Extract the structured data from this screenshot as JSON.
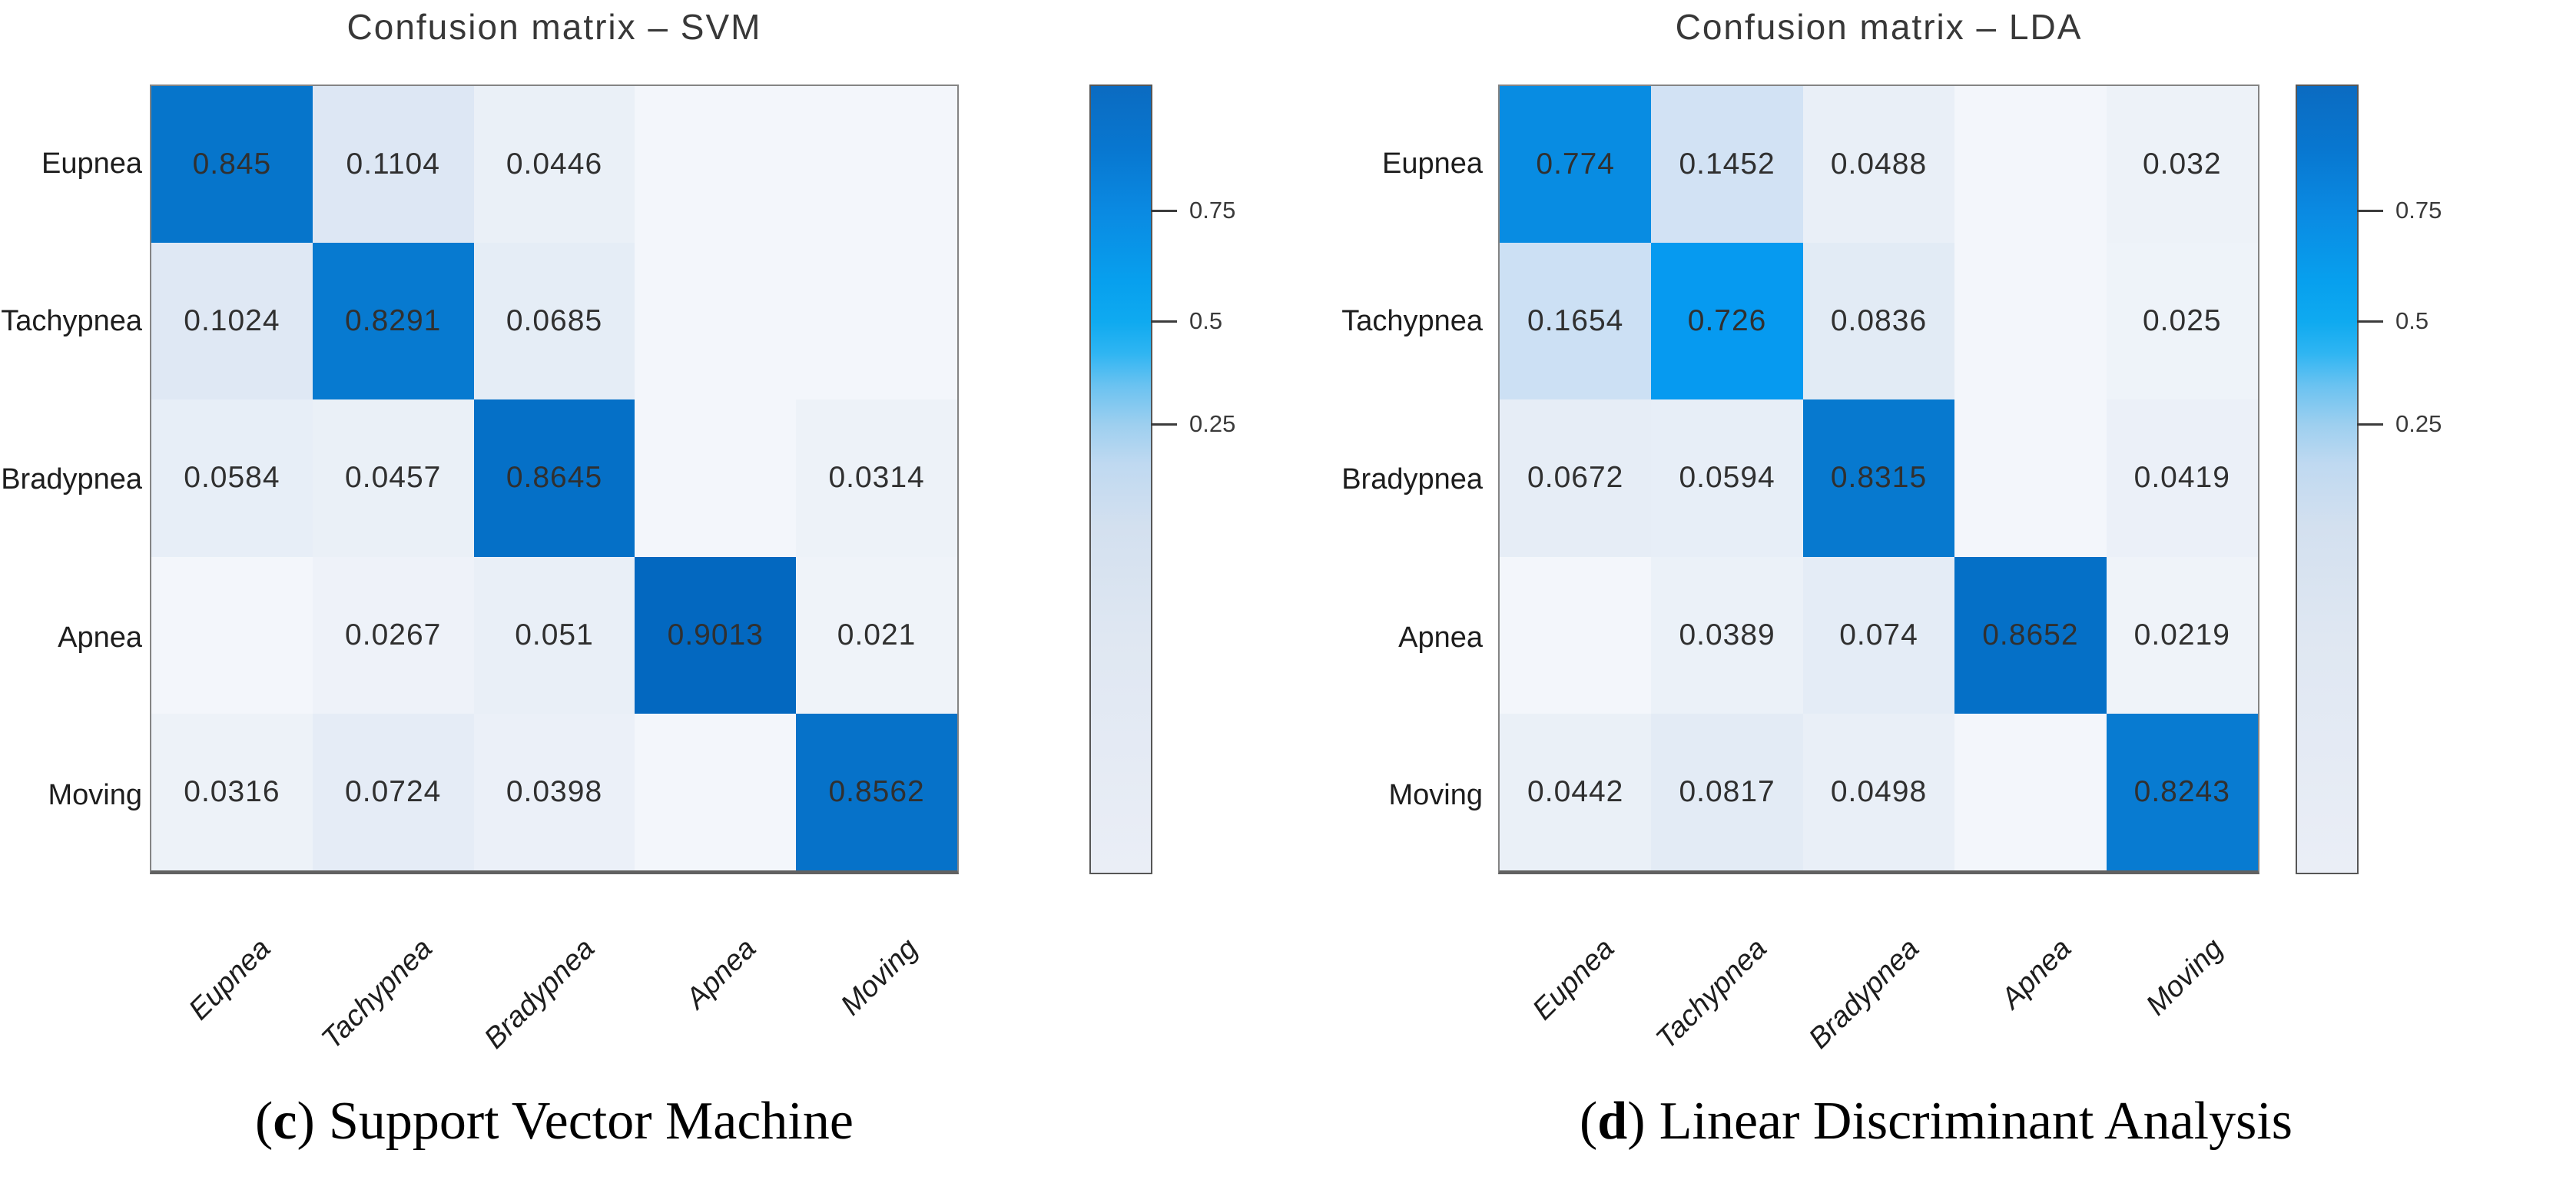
{
  "chart_data": [
    {
      "type": "heatmap",
      "title": "Confusion matrix – SVM",
      "caption": {
        "open": "(",
        "letter": "c",
        "close": ")",
        "text": "Support Vector Machine"
      },
      "x_axis_labels": [
        "Eupnea",
        "Tachypnea",
        "Bradypnea",
        "Apnea",
        "Moving"
      ],
      "y_axis_labels": [
        "Eupnea",
        "Tachypnea",
        "Bradypnea",
        "Apnea",
        "Moving"
      ],
      "values": [
        [
          0.845,
          0.1104,
          0.0446,
          null,
          null
        ],
        [
          0.1024,
          0.8291,
          0.0685,
          null,
          null
        ],
        [
          0.0584,
          0.0457,
          0.8645,
          null,
          0.0314
        ],
        [
          null,
          0.0267,
          0.051,
          0.9013,
          0.021
        ],
        [
          0.0316,
          0.0724,
          0.0398,
          null,
          0.8562
        ]
      ],
      "colorbar": {
        "tick_labels": [
          "0.75",
          "0.5",
          "0.25"
        ],
        "tick_values": [
          0.75,
          0.5,
          0.25
        ]
      },
      "value_range": [
        0,
        0.9013
      ],
      "grid": false,
      "legend_position": "right"
    },
    {
      "type": "heatmap",
      "title": "Confusion matrix – LDA",
      "caption": {
        "open": "(",
        "letter": "d",
        "close": ")",
        "text": "Linear Discriminant Analysis"
      },
      "x_axis_labels": [
        "Eupnea",
        "Tachypnea",
        "Bradypnea",
        "Apnea",
        "Moving"
      ],
      "y_axis_labels": [
        "Eupnea",
        "Tachypnea",
        "Bradypnea",
        "Apnea",
        "Moving"
      ],
      "values": [
        [
          0.774,
          0.1452,
          0.0488,
          null,
          0.032
        ],
        [
          0.1654,
          0.726,
          0.0836,
          null,
          0.025
        ],
        [
          0.0672,
          0.0594,
          0.8315,
          null,
          0.0419
        ],
        [
          null,
          0.0389,
          0.074,
          0.8652,
          0.0219
        ],
        [
          0.0442,
          0.0817,
          0.0498,
          null,
          0.8243
        ]
      ],
      "colorbar": {
        "tick_labels": [
          "0.75",
          "0.5",
          "0.25"
        ],
        "tick_values": [
          0.75,
          0.5,
          0.25
        ]
      },
      "value_range": [
        0,
        0.8652
      ],
      "grid": false,
      "legend_position": "right"
    }
  ],
  "colors": {
    "cell_text": "#303030",
    "title_text": "#383838",
    "axis_label_text": "#1d1d1d",
    "matrix_border": "#848484",
    "colorbar_border": "#565656",
    "colormap_stops": [
      [
        0.0,
        "#f3f6fb"
      ],
      [
        0.05,
        "#e9eff7"
      ],
      [
        0.11,
        "#dde7f4"
      ],
      [
        0.17,
        "#cbdff4"
      ],
      [
        0.3,
        "#a0d0f2"
      ],
      [
        0.45,
        "#50bcf2"
      ],
      [
        0.55,
        "#14aaf2"
      ],
      [
        0.7,
        "#04a0f6"
      ],
      [
        0.75,
        "#0894eb"
      ],
      [
        0.8,
        "#0983d8"
      ],
      [
        0.85,
        "#0673ca"
      ],
      [
        0.91,
        "#0366be"
      ]
    ]
  }
}
